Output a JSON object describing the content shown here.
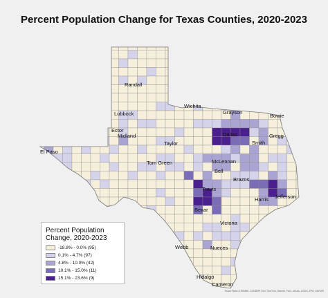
{
  "title": "Percent Population Change for Texas Counties, 2020-2023",
  "colors": {
    "background": "#f0f0f0",
    "class1": "#f5efdc",
    "class2": "#d4d3ea",
    "class3": "#a9a4d2",
    "class4": "#7a6cb6",
    "class5": "#4b1f8e",
    "border": "#8f8f8f"
  },
  "legend": {
    "title": "Percent Population Change, 2020-2023",
    "items": [
      {
        "label": "-18.8% - 0.0% (95)",
        "color": "#f5efdc"
      },
      {
        "label": "0.1% - 4.7% (97)",
        "color": "#d4d3ea"
      },
      {
        "label": "4.8% - 10.0% (42)",
        "color": "#a9a4d2"
      },
      {
        "label": "10.1% - 15.0% (11)",
        "color": "#7a6cb6"
      },
      {
        "label": "15.1% - 23.6% (9)",
        "color": "#4b1f8e"
      }
    ]
  },
  "county_labels": {
    "randall": "Randall",
    "lubbock": "Lubbock",
    "wichita": "Wichita",
    "grayson": "Grayson",
    "bowie": "Bowie",
    "dallas": "Dallas",
    "gregg": "Gregg",
    "smith": "Smith",
    "el_paso": "El Paso",
    "ector": "Ector",
    "midland": "Midland",
    "taylor": "Taylor",
    "tom_green": "Tom Green",
    "mclennan": "McLennan",
    "bell": "Bell",
    "brazos": "Brazos",
    "travis": "Travis",
    "harris": "Harris",
    "jefferson": "Jefferson",
    "bexar": "Bexar",
    "victoria": "Victoria",
    "webb": "Webb",
    "nueces": "Nueces",
    "hidalgo": "Hidalgo",
    "cameron": "Cameron"
  },
  "attribution": "Texas Parks & Wildlife, CONANP, Esri, TomTom, Garmin, FAO, NOAA, USGS, EPA, USFWS"
}
